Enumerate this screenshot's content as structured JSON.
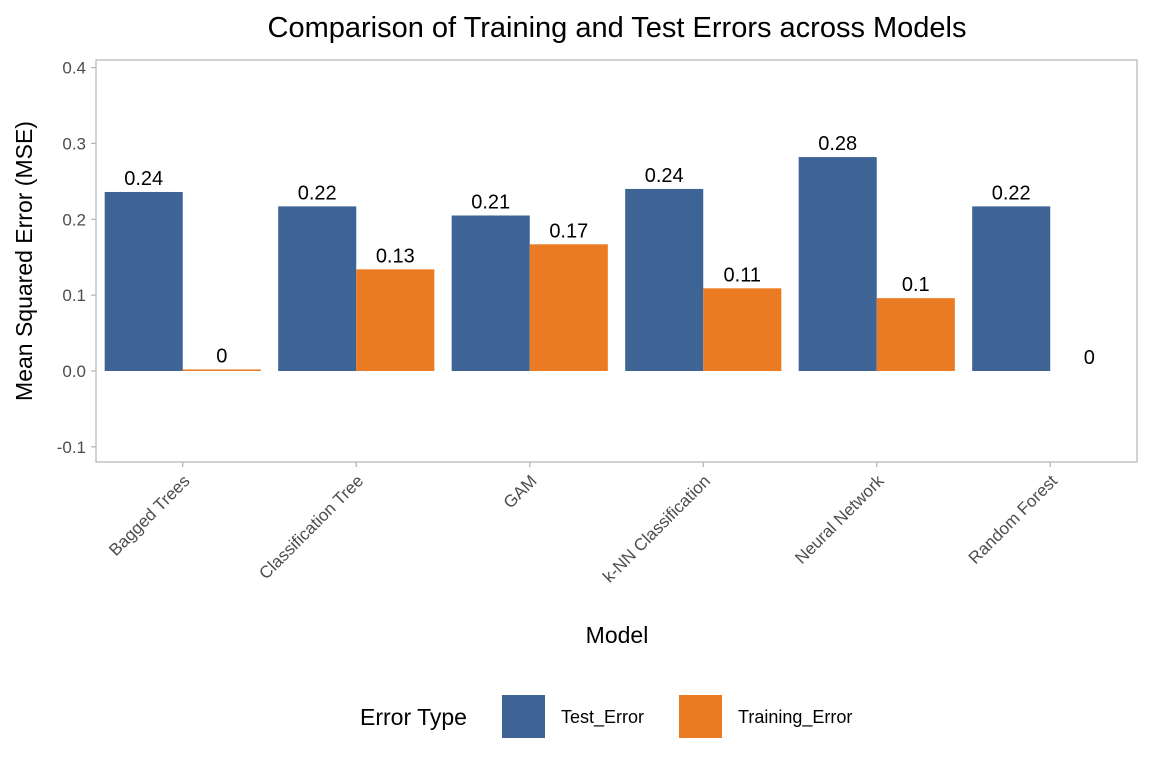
{
  "chart_data": {
    "type": "bar",
    "title": "Comparison of Training and Test Errors across Models",
    "xlabel": "Model",
    "ylabel": "Mean Squared Error (MSE)",
    "categories": [
      "Bagged Trees",
      "Classification Tree",
      "GAM",
      "k-NN Classification",
      "Neural Network",
      "Random Forest"
    ],
    "series": [
      {
        "name": "Test_Error",
        "color": "#3d6495",
        "values": [
          0.236,
          0.217,
          0.205,
          0.24,
          0.282,
          0.217
        ],
        "labels": [
          "0.24",
          "0.22",
          "0.21",
          "0.24",
          "0.28",
          "0.22"
        ]
      },
      {
        "name": "Training_Error",
        "color": "#eb7b22",
        "values": [
          0.002,
          0.134,
          0.167,
          0.109,
          0.096,
          0.0
        ],
        "labels": [
          "0",
          "0.13",
          "0.17",
          "0.11",
          "0.1",
          "0"
        ]
      }
    ],
    "ylim": [
      -0.12,
      0.41
    ],
    "yticks": [
      -0.1,
      0.0,
      0.1,
      0.2,
      0.3,
      0.4
    ],
    "ytick_labels": [
      "-0.1",
      "0.0",
      "0.1",
      "0.2",
      "0.3",
      "0.4"
    ],
    "legend": {
      "title": "Error Type",
      "position": "bottom",
      "entries": [
        "Test_Error",
        "Training_Error"
      ]
    },
    "grid": false
  }
}
